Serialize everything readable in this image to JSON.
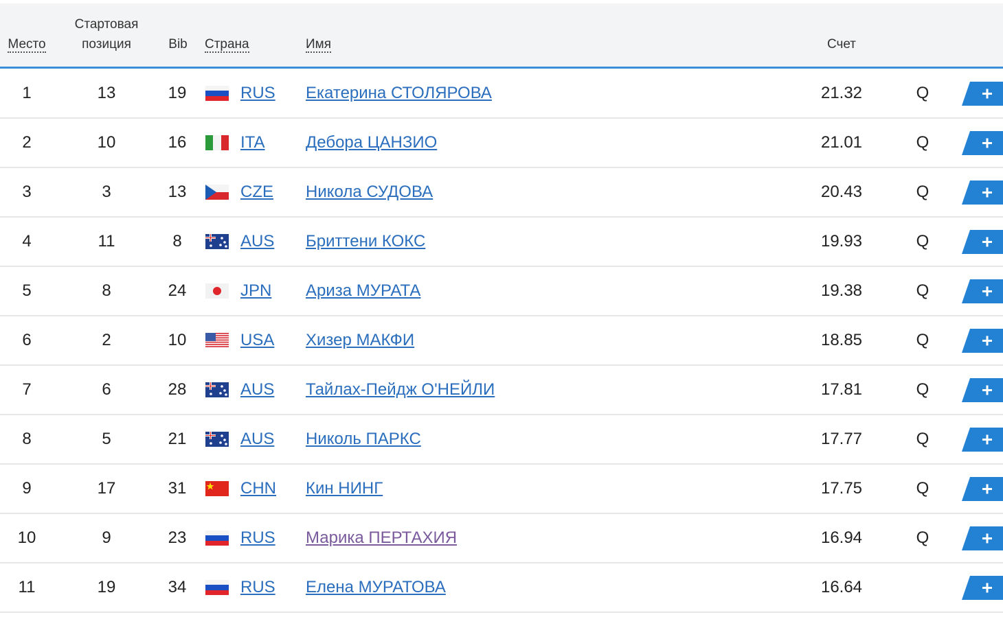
{
  "table": {
    "header": {
      "place": "Место",
      "start_position": "Стартовая позиция",
      "bib": "Bib",
      "country": "Страна",
      "name": "Имя",
      "score": "Счет"
    },
    "rows": [
      {
        "place": "1",
        "start": "13",
        "bib": "19",
        "country": "RUS",
        "name": "Екатерина СТОЛЯРОВА",
        "score": "21.32",
        "qual": "Q"
      },
      {
        "place": "2",
        "start": "10",
        "bib": "16",
        "country": "ITA",
        "name": "Дебора ЦАНЗИО",
        "score": "21.01",
        "qual": "Q"
      },
      {
        "place": "3",
        "start": "3",
        "bib": "13",
        "country": "CZE",
        "name": "Никола СУДОВА",
        "score": "20.43",
        "qual": "Q"
      },
      {
        "place": "4",
        "start": "11",
        "bib": "8",
        "country": "AUS",
        "name": "Бриттени КОКС",
        "score": "19.93",
        "qual": "Q"
      },
      {
        "place": "5",
        "start": "8",
        "bib": "24",
        "country": "JPN",
        "name": "Ариза МУРАТА",
        "score": "19.38",
        "qual": "Q"
      },
      {
        "place": "6",
        "start": "2",
        "bib": "10",
        "country": "USA",
        "name": "Хизер МАКФИ",
        "score": "18.85",
        "qual": "Q"
      },
      {
        "place": "7",
        "start": "6",
        "bib": "28",
        "country": "AUS",
        "name": "Тайлах-Пейдж О'НЕЙЛИ",
        "score": "17.81",
        "qual": "Q"
      },
      {
        "place": "8",
        "start": "5",
        "bib": "21",
        "country": "AUS",
        "name": "Николь ПАРКС",
        "score": "17.77",
        "qual": "Q"
      },
      {
        "place": "9",
        "start": "17",
        "bib": "31",
        "country": "CHN",
        "name": "Кин НИНГ",
        "score": "17.75",
        "qual": "Q"
      },
      {
        "place": "10",
        "start": "9",
        "bib": "23",
        "country": "RUS",
        "name": "Марика ПЕРТАХИЯ",
        "score": "16.94",
        "qual": "Q"
      },
      {
        "place": "11",
        "start": "19",
        "bib": "34",
        "country": "RUS",
        "name": "Елена МУРАТОВА",
        "score": "16.64"
      }
    ]
  }
}
